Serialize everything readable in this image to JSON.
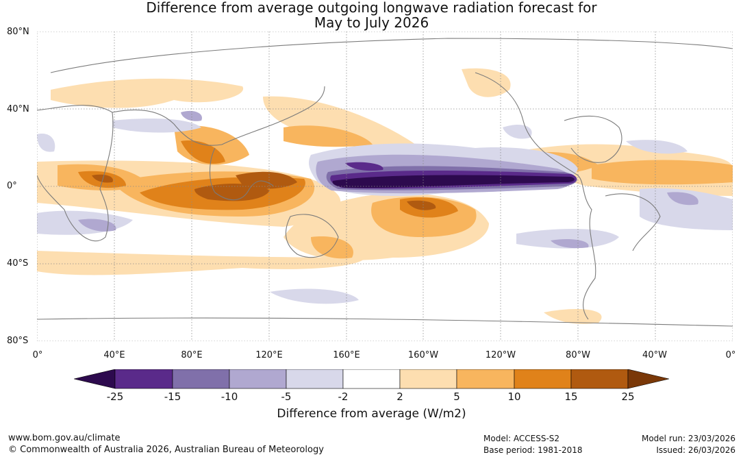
{
  "title": {
    "line1": "Difference from average outgoing longwave radiation forecast for",
    "line2": "May to July 2026"
  },
  "map": {
    "lat_labels": [
      "80°N",
      "40°N",
      "0°",
      "40°S",
      "80°S"
    ],
    "lon_labels": [
      "0°",
      "40°E",
      "80°E",
      "120°E",
      "160°E",
      "160°W",
      "120°W",
      "80°W",
      "40°W",
      "0°"
    ]
  },
  "colorbar": {
    "label": "Difference from average (W/m2)",
    "ticks": [
      "-25",
      "-15",
      "-10",
      "-5",
      "-2",
      "2",
      "5",
      "10",
      "15",
      "25"
    ],
    "colors": {
      "below_-25": "#2d0a4e",
      "-25_-15": "#5a2a8a",
      "-15_-10": "#8070aa",
      "-10_-5": "#b0a8d0",
      "-5_-2": "#d8d8ea",
      "-2_2": "#ffffff",
      "2_5": "#fddeb0",
      "5_10": "#f8b55e",
      "10_15": "#e0821a",
      "15_25": "#b05a10",
      "above_25": "#7a3808"
    }
  },
  "footer": {
    "website": "www.bom.gov.au/climate",
    "copyright": "© Commonwealth of Australia 2026, Australian Bureau of Meteorology",
    "model": "Model: ACCESS-S2",
    "base_period": "Base period: 1981-2018",
    "model_run": "Model run: 23/03/2026",
    "issued": "Issued: 26/03/2026"
  }
}
